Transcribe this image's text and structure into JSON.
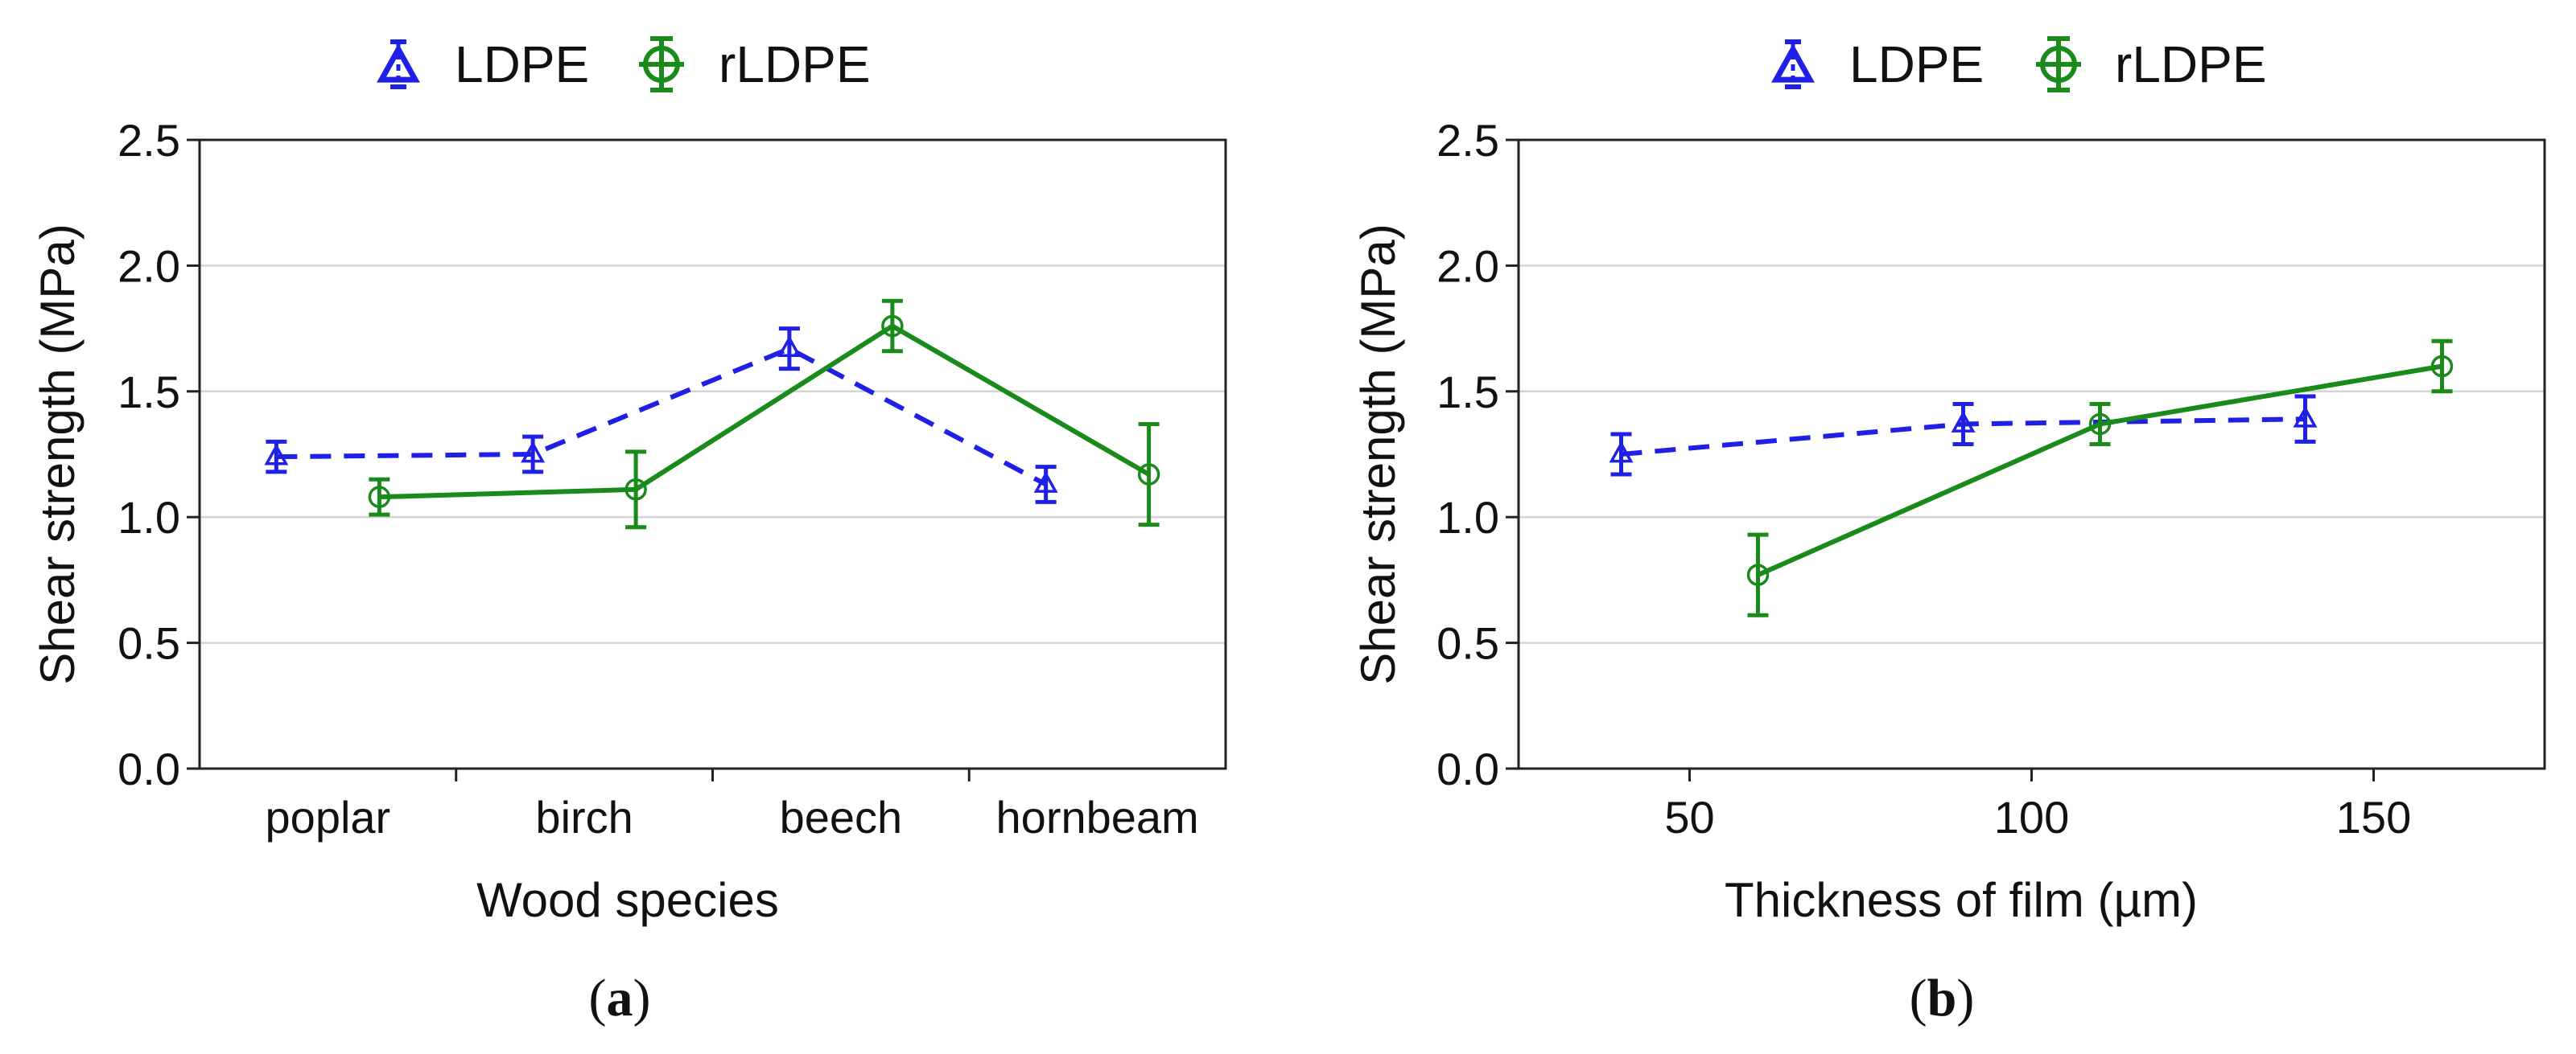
{
  "colors": {
    "ldpe": "#1f1fe6",
    "rldpe": "#1a8a1a"
  },
  "chart_data": [
    {
      "type": "line",
      "panel_label": "a",
      "xlabel": "Wood species",
      "ylabel": "Shear strength (MPa)",
      "ylim": [
        0.0,
        2.5
      ],
      "yticks": [
        "0.0",
        "0.5",
        "1.0",
        "1.5",
        "2.0",
        "2.5"
      ],
      "categories": [
        "poplar",
        "birch",
        "beech",
        "hornbeam"
      ],
      "grid": true,
      "legend": {
        "position": "top-center",
        "entries": [
          "LDPE",
          "rLDPE"
        ]
      },
      "series": [
        {
          "name": "LDPE",
          "style": "dashed",
          "marker": "triangle",
          "values": [
            1.24,
            1.25,
            1.67,
            1.13
          ],
          "errors": [
            0.06,
            0.07,
            0.08,
            0.07
          ]
        },
        {
          "name": "rLDPE",
          "style": "solid",
          "marker": "circle",
          "values": [
            1.08,
            1.11,
            1.76,
            1.17
          ],
          "errors": [
            0.07,
            0.15,
            0.1,
            0.2
          ]
        }
      ]
    },
    {
      "type": "line",
      "panel_label": "b",
      "xlabel": "Thickness of film (µm)",
      "ylabel": "Shear strength (MPa)",
      "ylim": [
        0.0,
        2.5
      ],
      "xlim": [
        25,
        175
      ],
      "yticks": [
        "0.0",
        "0.5",
        "1.0",
        "1.5",
        "2.0",
        "2.5"
      ],
      "xticks": [
        "50",
        "100",
        "150"
      ],
      "grid": true,
      "legend": {
        "position": "top-center",
        "entries": [
          "LDPE",
          "rLDPE"
        ]
      },
      "series": [
        {
          "name": "LDPE",
          "style": "dashed",
          "marker": "triangle",
          "x": [
            40,
            90,
            140
          ],
          "values": [
            1.25,
            1.37,
            1.39
          ],
          "errors": [
            0.08,
            0.08,
            0.09
          ]
        },
        {
          "name": "rLDPE",
          "style": "solid",
          "marker": "circle",
          "x": [
            60,
            110,
            160
          ],
          "values": [
            0.77,
            1.37,
            1.6
          ],
          "errors": [
            0.16,
            0.08,
            0.1
          ]
        }
      ]
    }
  ]
}
